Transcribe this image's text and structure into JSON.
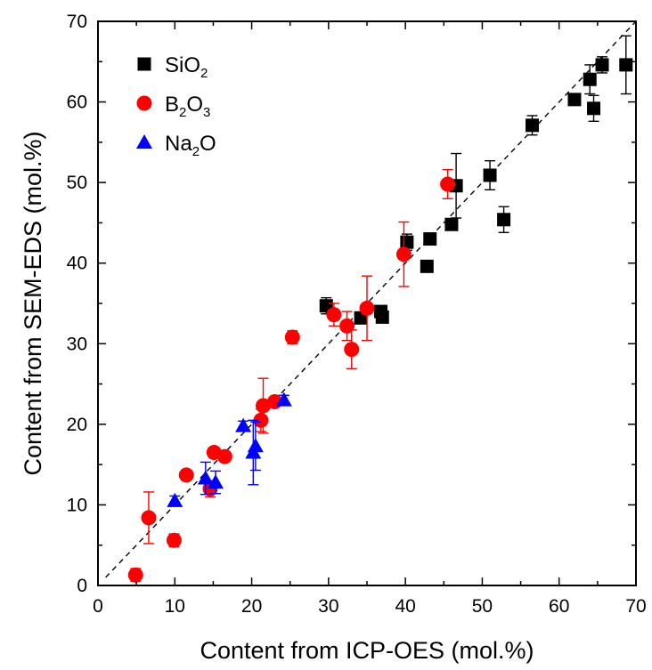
{
  "chart_data": {
    "type": "scatter",
    "title": "",
    "xlabel": "Content from ICP-OES (mol.%)",
    "ylabel": "Content from SEM-EDS (mol.%)",
    "xlim": [
      0,
      70
    ],
    "ylim": [
      0,
      70
    ],
    "xticks": [
      "0",
      "10",
      "20",
      "30",
      "40",
      "50",
      "60",
      "70"
    ],
    "yticks": [
      "0",
      "10",
      "20",
      "30",
      "40",
      "50",
      "60",
      "70"
    ],
    "grid": false,
    "legend_position": "top-left",
    "reference_line": "y = x (dashed)",
    "series": [
      {
        "name": "SiO2",
        "legend_parts": [
          "SiO",
          "2",
          ""
        ],
        "marker": "square",
        "color": "#000000",
        "points": [
          {
            "x": 29.7,
            "y": 34.7,
            "err": 1.0
          },
          {
            "x": 34.2,
            "y": 33.2,
            "err": 0.6
          },
          {
            "x": 36.8,
            "y": 34.0,
            "err": 0.6
          },
          {
            "x": 37.0,
            "y": 33.3,
            "err": 0.6
          },
          {
            "x": 40.2,
            "y": 42.6,
            "err": 1.0
          },
          {
            "x": 42.8,
            "y": 39.6,
            "err": 0.6
          },
          {
            "x": 43.2,
            "y": 43.0,
            "err": 0.6
          },
          {
            "x": 46.0,
            "y": 44.8,
            "err": 0.6
          },
          {
            "x": 46.6,
            "y": 49.6,
            "err": 4.0
          },
          {
            "x": 51.0,
            "y": 50.9,
            "err": 1.8
          },
          {
            "x": 52.8,
            "y": 45.4,
            "err": 1.6
          },
          {
            "x": 56.5,
            "y": 57.1,
            "err": 1.2
          },
          {
            "x": 62.0,
            "y": 60.3,
            "err": 0.6
          },
          {
            "x": 64.0,
            "y": 62.8,
            "err": 1.8
          },
          {
            "x": 64.5,
            "y": 59.2,
            "err": 1.6
          },
          {
            "x": 65.6,
            "y": 64.6,
            "err": 1.0
          },
          {
            "x": 68.7,
            "y": 64.6,
            "err": 3.6
          }
        ]
      },
      {
        "name": "B2O3",
        "legend_parts": [
          "B",
          "2",
          "O",
          "3"
        ],
        "marker": "circle",
        "color": "#ff0000",
        "points": [
          {
            "x": 4.9,
            "y": 1.3,
            "err": 0.8
          },
          {
            "x": 6.6,
            "y": 8.4,
            "err": 3.2
          },
          {
            "x": 9.9,
            "y": 5.6,
            "err": 0.8
          },
          {
            "x": 11.5,
            "y": 13.7,
            "err": 0.6
          },
          {
            "x": 14.6,
            "y": 12.0,
            "err": 1.0
          },
          {
            "x": 15.1,
            "y": 16.5,
            "err": 0.6
          },
          {
            "x": 16.5,
            "y": 16.0,
            "err": 0.6
          },
          {
            "x": 21.2,
            "y": 20.5,
            "err": 1.4
          },
          {
            "x": 21.5,
            "y": 22.3,
            "err": 3.4
          },
          {
            "x": 23.0,
            "y": 22.8,
            "err": 0.6
          },
          {
            "x": 25.3,
            "y": 30.8,
            "err": 0.8
          },
          {
            "x": 30.7,
            "y": 33.6,
            "err": 1.4
          },
          {
            "x": 32.4,
            "y": 32.2,
            "err": 1.8
          },
          {
            "x": 33.0,
            "y": 29.3,
            "err": 2.4
          },
          {
            "x": 35.0,
            "y": 34.4,
            "err": 4.0
          },
          {
            "x": 39.8,
            "y": 41.1,
            "err": 4.0
          },
          {
            "x": 45.5,
            "y": 49.8,
            "err": 1.8
          }
        ]
      },
      {
        "name": "Na2O",
        "legend_parts": [
          "Na",
          "2",
          "O",
          ""
        ],
        "marker": "triangle",
        "color": "#0000ff",
        "points": [
          {
            "x": 10.0,
            "y": 10.5,
            "err": 0.6
          },
          {
            "x": 14.0,
            "y": 13.3,
            "err": 2.0
          },
          {
            "x": 15.3,
            "y": 12.8,
            "err": 1.4
          },
          {
            "x": 18.9,
            "y": 19.8,
            "err": 0.6
          },
          {
            "x": 20.2,
            "y": 16.5,
            "err": 4.0
          },
          {
            "x": 20.5,
            "y": 17.3,
            "err": 3.0
          },
          {
            "x": 24.2,
            "y": 23.0,
            "err": 0.6
          }
        ]
      }
    ]
  }
}
